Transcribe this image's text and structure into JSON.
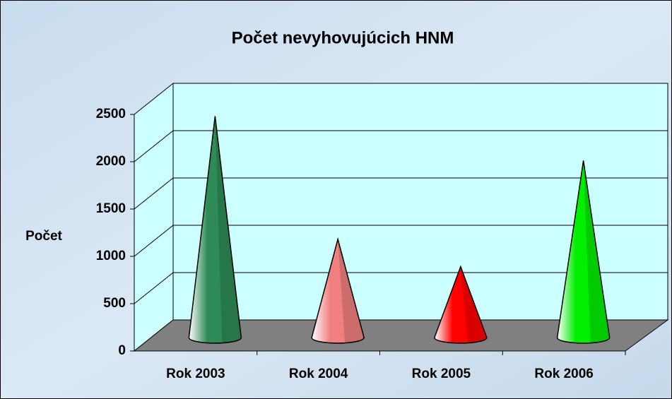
{
  "chart_data": {
    "type": "cone",
    "title": "Počet nevyhovujúcich HNM",
    "y_label": "Počet",
    "categories": [
      "Rok 2003",
      "Rok 2004",
      "Rok 2005",
      "Rok 2006"
    ],
    "values": [
      2340,
      1040,
      750,
      1870
    ],
    "colors": [
      "#2e8b57",
      "#f08080",
      "#ff0000",
      "#00ee00"
    ],
    "ylim": [
      0,
      2500
    ],
    "yticks": [
      0,
      500,
      1000,
      1500,
      2000,
      2500
    ],
    "grid": true
  }
}
